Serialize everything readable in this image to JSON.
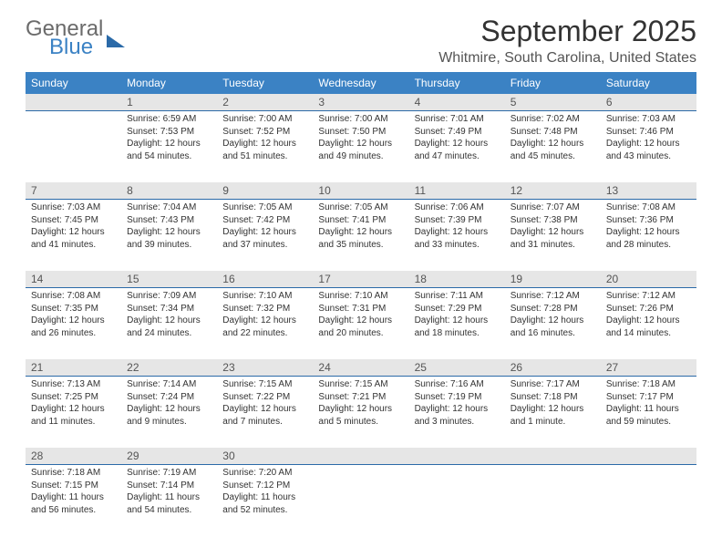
{
  "brand": {
    "general": "General",
    "blue": "Blue"
  },
  "title": "September 2025",
  "location": "Whitmire, South Carolina, United States",
  "colors": {
    "header_bg": "#3b82c4",
    "header_text": "#ffffff",
    "daynum_bg": "#e6e6e6",
    "daynum_border": "#2b6aa8",
    "body_text": "#333333",
    "location_text": "#555555"
  },
  "weekdays": [
    "Sunday",
    "Monday",
    "Tuesday",
    "Wednesday",
    "Thursday",
    "Friday",
    "Saturday"
  ],
  "weeks": [
    {
      "nums": [
        "",
        "1",
        "2",
        "3",
        "4",
        "5",
        "6"
      ],
      "days": [
        null,
        {
          "sunrise": "Sunrise: 6:59 AM",
          "sunset": "Sunset: 7:53 PM",
          "day1": "Daylight: 12 hours",
          "day2": "and 54 minutes."
        },
        {
          "sunrise": "Sunrise: 7:00 AM",
          "sunset": "Sunset: 7:52 PM",
          "day1": "Daylight: 12 hours",
          "day2": "and 51 minutes."
        },
        {
          "sunrise": "Sunrise: 7:00 AM",
          "sunset": "Sunset: 7:50 PM",
          "day1": "Daylight: 12 hours",
          "day2": "and 49 minutes."
        },
        {
          "sunrise": "Sunrise: 7:01 AM",
          "sunset": "Sunset: 7:49 PM",
          "day1": "Daylight: 12 hours",
          "day2": "and 47 minutes."
        },
        {
          "sunrise": "Sunrise: 7:02 AM",
          "sunset": "Sunset: 7:48 PM",
          "day1": "Daylight: 12 hours",
          "day2": "and 45 minutes."
        },
        {
          "sunrise": "Sunrise: 7:03 AM",
          "sunset": "Sunset: 7:46 PM",
          "day1": "Daylight: 12 hours",
          "day2": "and 43 minutes."
        }
      ]
    },
    {
      "nums": [
        "7",
        "8",
        "9",
        "10",
        "11",
        "12",
        "13"
      ],
      "days": [
        {
          "sunrise": "Sunrise: 7:03 AM",
          "sunset": "Sunset: 7:45 PM",
          "day1": "Daylight: 12 hours",
          "day2": "and 41 minutes."
        },
        {
          "sunrise": "Sunrise: 7:04 AM",
          "sunset": "Sunset: 7:43 PM",
          "day1": "Daylight: 12 hours",
          "day2": "and 39 minutes."
        },
        {
          "sunrise": "Sunrise: 7:05 AM",
          "sunset": "Sunset: 7:42 PM",
          "day1": "Daylight: 12 hours",
          "day2": "and 37 minutes."
        },
        {
          "sunrise": "Sunrise: 7:05 AM",
          "sunset": "Sunset: 7:41 PM",
          "day1": "Daylight: 12 hours",
          "day2": "and 35 minutes."
        },
        {
          "sunrise": "Sunrise: 7:06 AM",
          "sunset": "Sunset: 7:39 PM",
          "day1": "Daylight: 12 hours",
          "day2": "and 33 minutes."
        },
        {
          "sunrise": "Sunrise: 7:07 AM",
          "sunset": "Sunset: 7:38 PM",
          "day1": "Daylight: 12 hours",
          "day2": "and 31 minutes."
        },
        {
          "sunrise": "Sunrise: 7:08 AM",
          "sunset": "Sunset: 7:36 PM",
          "day1": "Daylight: 12 hours",
          "day2": "and 28 minutes."
        }
      ]
    },
    {
      "nums": [
        "14",
        "15",
        "16",
        "17",
        "18",
        "19",
        "20"
      ],
      "days": [
        {
          "sunrise": "Sunrise: 7:08 AM",
          "sunset": "Sunset: 7:35 PM",
          "day1": "Daylight: 12 hours",
          "day2": "and 26 minutes."
        },
        {
          "sunrise": "Sunrise: 7:09 AM",
          "sunset": "Sunset: 7:34 PM",
          "day1": "Daylight: 12 hours",
          "day2": "and 24 minutes."
        },
        {
          "sunrise": "Sunrise: 7:10 AM",
          "sunset": "Sunset: 7:32 PM",
          "day1": "Daylight: 12 hours",
          "day2": "and 22 minutes."
        },
        {
          "sunrise": "Sunrise: 7:10 AM",
          "sunset": "Sunset: 7:31 PM",
          "day1": "Daylight: 12 hours",
          "day2": "and 20 minutes."
        },
        {
          "sunrise": "Sunrise: 7:11 AM",
          "sunset": "Sunset: 7:29 PM",
          "day1": "Daylight: 12 hours",
          "day2": "and 18 minutes."
        },
        {
          "sunrise": "Sunrise: 7:12 AM",
          "sunset": "Sunset: 7:28 PM",
          "day1": "Daylight: 12 hours",
          "day2": "and 16 minutes."
        },
        {
          "sunrise": "Sunrise: 7:12 AM",
          "sunset": "Sunset: 7:26 PM",
          "day1": "Daylight: 12 hours",
          "day2": "and 14 minutes."
        }
      ]
    },
    {
      "nums": [
        "21",
        "22",
        "23",
        "24",
        "25",
        "26",
        "27"
      ],
      "days": [
        {
          "sunrise": "Sunrise: 7:13 AM",
          "sunset": "Sunset: 7:25 PM",
          "day1": "Daylight: 12 hours",
          "day2": "and 11 minutes."
        },
        {
          "sunrise": "Sunrise: 7:14 AM",
          "sunset": "Sunset: 7:24 PM",
          "day1": "Daylight: 12 hours",
          "day2": "and 9 minutes."
        },
        {
          "sunrise": "Sunrise: 7:15 AM",
          "sunset": "Sunset: 7:22 PM",
          "day1": "Daylight: 12 hours",
          "day2": "and 7 minutes."
        },
        {
          "sunrise": "Sunrise: 7:15 AM",
          "sunset": "Sunset: 7:21 PM",
          "day1": "Daylight: 12 hours",
          "day2": "and 5 minutes."
        },
        {
          "sunrise": "Sunrise: 7:16 AM",
          "sunset": "Sunset: 7:19 PM",
          "day1": "Daylight: 12 hours",
          "day2": "and 3 minutes."
        },
        {
          "sunrise": "Sunrise: 7:17 AM",
          "sunset": "Sunset: 7:18 PM",
          "day1": "Daylight: 12 hours",
          "day2": "and 1 minute."
        },
        {
          "sunrise": "Sunrise: 7:18 AM",
          "sunset": "Sunset: 7:17 PM",
          "day1": "Daylight: 11 hours",
          "day2": "and 59 minutes."
        }
      ]
    },
    {
      "nums": [
        "28",
        "29",
        "30",
        "",
        "",
        "",
        ""
      ],
      "days": [
        {
          "sunrise": "Sunrise: 7:18 AM",
          "sunset": "Sunset: 7:15 PM",
          "day1": "Daylight: 11 hours",
          "day2": "and 56 minutes."
        },
        {
          "sunrise": "Sunrise: 7:19 AM",
          "sunset": "Sunset: 7:14 PM",
          "day1": "Daylight: 11 hours",
          "day2": "and 54 minutes."
        },
        {
          "sunrise": "Sunrise: 7:20 AM",
          "sunset": "Sunset: 7:12 PM",
          "day1": "Daylight: 11 hours",
          "day2": "and 52 minutes."
        },
        null,
        null,
        null,
        null
      ]
    }
  ]
}
